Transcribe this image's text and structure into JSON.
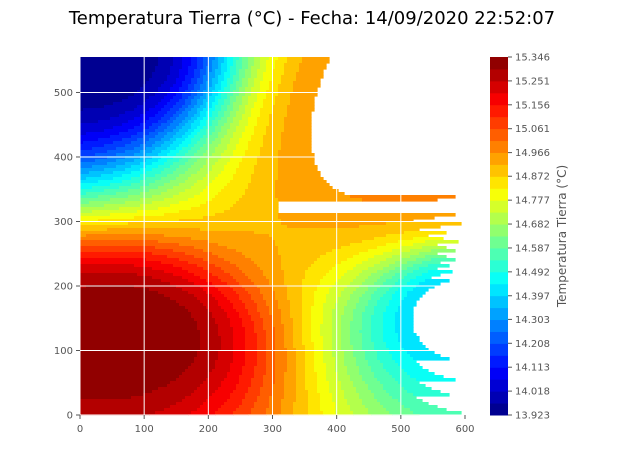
{
  "chart_data": {
    "type": "heatmap",
    "subtype": "filled-contour",
    "title": "Temperatura Tierra (°C) - Fecha: 14/09/2020 22:52:07",
    "xlabel": "",
    "ylabel": "",
    "xlim": [
      0,
      600
    ],
    "ylim": [
      0,
      555
    ],
    "xticks": [
      0,
      100,
      200,
      300,
      400,
      500,
      600
    ],
    "yticks": [
      0,
      100,
      200,
      300,
      400,
      500
    ],
    "grid": true,
    "colormap": "jet",
    "colorbar": {
      "label": "Temperatura Tierra (°C)",
      "min": 13.923,
      "max": 15.346,
      "levels": 30,
      "tick_labels": [
        "13.923",
        "14.018",
        "14.113",
        "14.208",
        "14.303",
        "14.397",
        "14.492",
        "14.587",
        "14.682",
        "14.777",
        "14.872",
        "14.966",
        "15.061",
        "15.156",
        "15.251",
        "15.346"
      ]
    },
    "features": [
      {
        "type": "max",
        "x": 60,
        "y": 125,
        "value": 15.346,
        "sx": 250,
        "sy": 150
      },
      {
        "type": "min",
        "x": 20,
        "y": 555,
        "value": 13.923,
        "sx": 290,
        "sy": 190
      },
      {
        "type": "min",
        "x": 600,
        "y": 160,
        "value": 14.35,
        "sx": 230,
        "sy": 170
      },
      {
        "type": "max",
        "x": 530,
        "y": 470,
        "value": 15.0,
        "sx": 420,
        "sy": 360
      }
    ]
  }
}
